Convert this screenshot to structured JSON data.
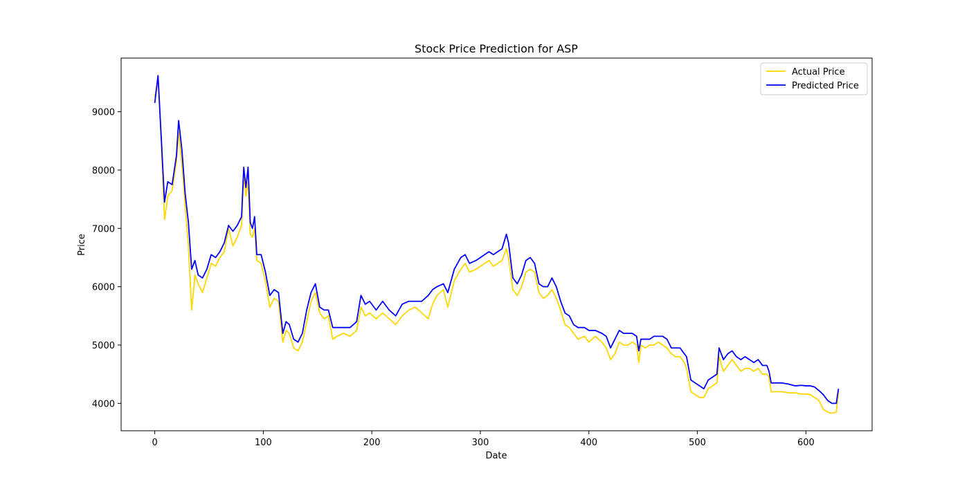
{
  "chart_data": {
    "type": "line",
    "title": "Stock Price Prediction for ASP",
    "xlabel": "Date",
    "ylabel": "Price",
    "xlim": [
      -31,
      661
    ],
    "ylim": [
      3530,
      9920
    ],
    "xticks": [
      0,
      100,
      200,
      300,
      400,
      500,
      600
    ],
    "yticks": [
      4000,
      5000,
      6000,
      7000,
      8000,
      9000
    ],
    "legend_position": "top-right",
    "grid": false,
    "series": [
      {
        "name": "Actual Price",
        "color": "#FFD700",
        "x": [
          0,
          3,
          6,
          9,
          12,
          16,
          20,
          22,
          25,
          28,
          31,
          34,
          37,
          40,
          44,
          48,
          52,
          56,
          60,
          64,
          68,
          72,
          76,
          80,
          82,
          84,
          86,
          88,
          90,
          92,
          94,
          98,
          102,
          106,
          110,
          114,
          118,
          121,
          124,
          128,
          132,
          136,
          140,
          144,
          148,
          152,
          156,
          160,
          164,
          168,
          174,
          180,
          186,
          190,
          194,
          198,
          204,
          210,
          216,
          222,
          228,
          234,
          240,
          246,
          252,
          256,
          260,
          266,
          270,
          276,
          282,
          286,
          290,
          296,
          300,
          304,
          308,
          312,
          316,
          320,
          324,
          326,
          330,
          334,
          338,
          342,
          346,
          350,
          354,
          358,
          362,
          366,
          370,
          374,
          378,
          382,
          386,
          390,
          396,
          400,
          406,
          412,
          416,
          420,
          424,
          428,
          432,
          436,
          440,
          444,
          446,
          448,
          452,
          456,
          460,
          464,
          468,
          472,
          476,
          480,
          484,
          488,
          490,
          494,
          498,
          502,
          506,
          510,
          514,
          518,
          520,
          524,
          528,
          532,
          536,
          540,
          544,
          548,
          552,
          556,
          560,
          564,
          566,
          568,
          572,
          578,
          584,
          590,
          596,
          600,
          604,
          608,
          612,
          616,
          620,
          624,
          628,
          630
        ],
        "y": [
          9250,
          9580,
          8450,
          7150,
          7550,
          7650,
          8150,
          8650,
          8100,
          7400,
          6700,
          5600,
          6200,
          6050,
          5900,
          6150,
          6400,
          6350,
          6500,
          6600,
          7000,
          6700,
          6850,
          7050,
          7900,
          7550,
          7800,
          6900,
          6850,
          7000,
          6450,
          6400,
          6100,
          5650,
          5800,
          5750,
          5050,
          5250,
          5200,
          4950,
          4900,
          5050,
          5400,
          5750,
          5900,
          5550,
          5450,
          5500,
          5100,
          5150,
          5200,
          5150,
          5250,
          5650,
          5500,
          5550,
          5450,
          5550,
          5450,
          5350,
          5500,
          5600,
          5650,
          5550,
          5450,
          5700,
          5850,
          5950,
          5650,
          6100,
          6300,
          6400,
          6250,
          6300,
          6350,
          6400,
          6450,
          6350,
          6400,
          6450,
          6650,
          6500,
          5950,
          5850,
          6000,
          6250,
          6300,
          6250,
          5900,
          5800,
          5850,
          5950,
          5800,
          5600,
          5350,
          5300,
          5200,
          5100,
          5150,
          5050,
          5150,
          5050,
          4950,
          4750,
          4850,
          5050,
          5000,
          5000,
          5050,
          5000,
          4700,
          5000,
          4950,
          5000,
          5000,
          5050,
          5000,
          4950,
          4850,
          4800,
          4800,
          4700,
          4600,
          4200,
          4150,
          4100,
          4100,
          4250,
          4300,
          4350,
          4800,
          4550,
          4650,
          4750,
          4650,
          4550,
          4600,
          4600,
          4550,
          4600,
          4500,
          4500,
          4450,
          4200,
          4200,
          4200,
          4180,
          4180,
          4160,
          4160,
          4150,
          4100,
          4050,
          3900,
          3850,
          3830,
          3850,
          4200
        ]
      },
      {
        "name": "Predicted Price",
        "color": "#0000FF",
        "x": [
          0,
          3,
          6,
          9,
          12,
          16,
          20,
          22,
          25,
          28,
          31,
          34,
          37,
          40,
          44,
          48,
          52,
          56,
          60,
          64,
          68,
          72,
          76,
          80,
          82,
          84,
          86,
          88,
          90,
          92,
          94,
          98,
          102,
          106,
          110,
          114,
          118,
          121,
          124,
          128,
          132,
          136,
          140,
          144,
          148,
          152,
          156,
          160,
          164,
          168,
          174,
          180,
          186,
          190,
          194,
          198,
          204,
          210,
          216,
          222,
          228,
          234,
          240,
          246,
          252,
          256,
          260,
          266,
          270,
          276,
          282,
          286,
          290,
          296,
          300,
          304,
          308,
          312,
          316,
          320,
          324,
          326,
          330,
          334,
          338,
          342,
          346,
          350,
          354,
          358,
          362,
          366,
          370,
          374,
          378,
          382,
          386,
          390,
          396,
          400,
          406,
          412,
          416,
          420,
          424,
          428,
          432,
          436,
          440,
          444,
          446,
          448,
          452,
          456,
          460,
          464,
          468,
          472,
          476,
          480,
          484,
          488,
          490,
          494,
          498,
          502,
          506,
          510,
          514,
          518,
          520,
          524,
          528,
          532,
          536,
          540,
          544,
          548,
          552,
          556,
          560,
          564,
          566,
          568,
          572,
          578,
          584,
          590,
          596,
          600,
          604,
          608,
          612,
          616,
          620,
          624,
          628,
          630
        ],
        "y": [
          9150,
          9620,
          8550,
          7450,
          7800,
          7750,
          8250,
          8850,
          8350,
          7600,
          7100,
          6300,
          6450,
          6200,
          6150,
          6300,
          6550,
          6500,
          6600,
          6750,
          7050,
          6950,
          7050,
          7200,
          8050,
          7700,
          8050,
          7100,
          7000,
          7200,
          6550,
          6550,
          6250,
          5850,
          5950,
          5900,
          5200,
          5400,
          5350,
          5100,
          5050,
          5200,
          5600,
          5900,
          6050,
          5650,
          5600,
          5600,
          5300,
          5300,
          5300,
          5300,
          5400,
          5850,
          5700,
          5750,
          5600,
          5750,
          5600,
          5500,
          5700,
          5750,
          5750,
          5750,
          5850,
          5950,
          6000,
          6050,
          5900,
          6300,
          6500,
          6550,
          6400,
          6450,
          6500,
          6550,
          6600,
          6550,
          6600,
          6650,
          6900,
          6750,
          6150,
          6050,
          6200,
          6450,
          6500,
          6400,
          6050,
          6000,
          6000,
          6150,
          6000,
          5750,
          5550,
          5500,
          5350,
          5300,
          5300,
          5250,
          5250,
          5200,
          5150,
          4950,
          5100,
          5250,
          5200,
          5200,
          5200,
          5150,
          4900,
          5100,
          5100,
          5100,
          5150,
          5150,
          5150,
          5100,
          4950,
          4950,
          4950,
          4850,
          4800,
          4400,
          4350,
          4300,
          4250,
          4400,
          4450,
          4500,
          4950,
          4750,
          4850,
          4900,
          4800,
          4750,
          4800,
          4750,
          4700,
          4750,
          4650,
          4650,
          4550,
          4350,
          4350,
          4350,
          4330,
          4300,
          4310,
          4300,
          4300,
          4280,
          4220,
          4150,
          4050,
          4000,
          4000,
          4250
        ]
      }
    ]
  }
}
